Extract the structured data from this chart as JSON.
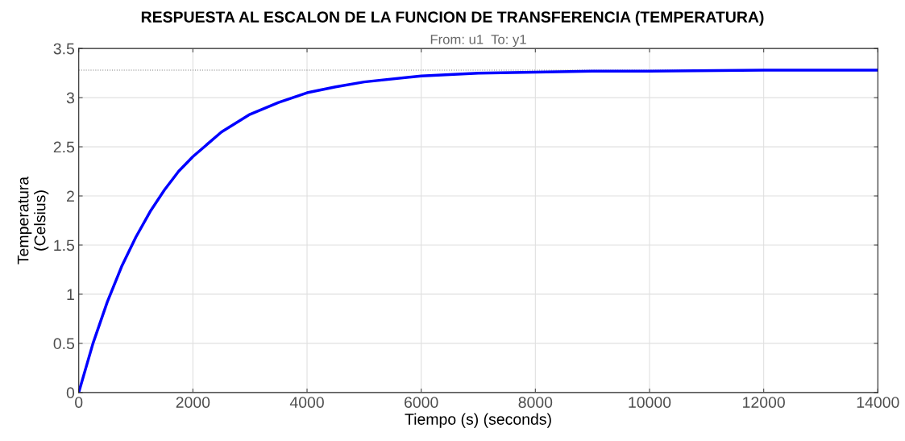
{
  "chart_data": {
    "type": "line",
    "title": "RESPUESTA AL ESCALON DE LA FUNCION DE TRANSFERENCIA (TEMPERATURA)",
    "subtitle": "From: u1  To: y1",
    "xlabel": "Tiempo (s) (seconds)",
    "ylabel": "Temperatura\n(Celsius)",
    "x": [
      0,
      250,
      500,
      750,
      1000,
      1250,
      1500,
      1750,
      2000,
      2500,
      3000,
      3500,
      4000,
      4500,
      5000,
      6000,
      7000,
      8000,
      9000,
      10000,
      12000,
      14000
    ],
    "series": [
      {
        "color": "#0000ff",
        "values": [
          0,
          0.5,
          0.92,
          1.28,
          1.58,
          1.84,
          2.06,
          2.25,
          2.4,
          2.65,
          2.83,
          2.95,
          3.05,
          3.11,
          3.16,
          3.22,
          3.25,
          3.26,
          3.27,
          3.27,
          3.28,
          3.28
        ]
      }
    ],
    "xlim": [
      0,
      14000
    ],
    "xticks": [
      0,
      2000,
      4000,
      6000,
      8000,
      10000,
      12000,
      14000
    ],
    "ylim": [
      0,
      3.5
    ],
    "yticks": [
      0,
      0.5,
      1,
      1.5,
      2,
      2.5,
      3,
      3.5
    ],
    "ref_lines": [
      {
        "axis": "y",
        "value": 3.28,
        "color": "#808080",
        "line_style": "dotted"
      }
    ],
    "grid": true,
    "line_style": "solid",
    "marker": "none"
  }
}
